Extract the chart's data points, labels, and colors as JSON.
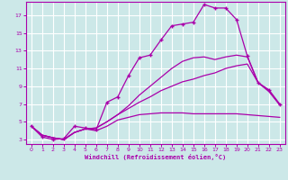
{
  "xlabel": "Windchill (Refroidissement éolien,°C)",
  "bg_color": "#cce8e8",
  "line_color": "#aa00aa",
  "grid_color": "#ffffff",
  "xlim": [
    -0.5,
    23.5
  ],
  "ylim": [
    2.5,
    18.5
  ],
  "xticks": [
    0,
    1,
    2,
    3,
    4,
    5,
    6,
    7,
    8,
    9,
    10,
    11,
    12,
    13,
    14,
    15,
    16,
    17,
    18,
    19,
    20,
    21,
    22,
    23
  ],
  "yticks": [
    3,
    5,
    7,
    9,
    11,
    13,
    15,
    17
  ],
  "line1_x": [
    0,
    1,
    2,
    3,
    4,
    5,
    6,
    7,
    8,
    9,
    10,
    11,
    12,
    13,
    14,
    15,
    16,
    17,
    18,
    19,
    20,
    21,
    22,
    23
  ],
  "line1_y": [
    4.5,
    3.3,
    3.0,
    3.1,
    4.5,
    4.3,
    4.1,
    7.2,
    7.8,
    10.2,
    12.2,
    12.5,
    14.2,
    15.8,
    16.0,
    16.2,
    18.2,
    17.8,
    17.8,
    16.5,
    12.4,
    9.4,
    8.6,
    7.0
  ],
  "line2_x": [
    0,
    1,
    2,
    3,
    4,
    5,
    6,
    7,
    8,
    9,
    10,
    11,
    12,
    13,
    14,
    15,
    16,
    17,
    18,
    19,
    20,
    21,
    22,
    23
  ],
  "line2_y": [
    4.5,
    3.5,
    3.2,
    3.0,
    3.8,
    4.2,
    4.0,
    4.5,
    5.2,
    5.5,
    5.8,
    5.9,
    6.0,
    6.0,
    6.0,
    5.9,
    5.9,
    5.9,
    5.9,
    5.9,
    5.8,
    5.7,
    5.6,
    5.5
  ],
  "line3_x": [
    0,
    1,
    2,
    3,
    4,
    5,
    6,
    7,
    8,
    9,
    10,
    11,
    12,
    13,
    14,
    15,
    16,
    17,
    18,
    19,
    20,
    21,
    22,
    23
  ],
  "line3_y": [
    4.5,
    3.5,
    3.2,
    3.0,
    3.8,
    4.2,
    4.3,
    5.0,
    5.8,
    6.5,
    7.2,
    7.8,
    8.5,
    9.0,
    9.5,
    9.8,
    10.2,
    10.5,
    11.0,
    11.3,
    11.5,
    9.4,
    8.4,
    6.9
  ],
  "line4_x": [
    0,
    1,
    2,
    3,
    4,
    5,
    6,
    7,
    8,
    9,
    10,
    11,
    12,
    13,
    14,
    15,
    16,
    17,
    18,
    19,
    20,
    21,
    22,
    23
  ],
  "line4_y": [
    4.5,
    3.5,
    3.2,
    3.0,
    3.8,
    4.2,
    4.3,
    5.0,
    5.8,
    6.8,
    8.0,
    9.0,
    10.0,
    11.0,
    11.8,
    12.2,
    12.3,
    12.0,
    12.3,
    12.5,
    12.3,
    9.4,
    8.5,
    6.9
  ]
}
